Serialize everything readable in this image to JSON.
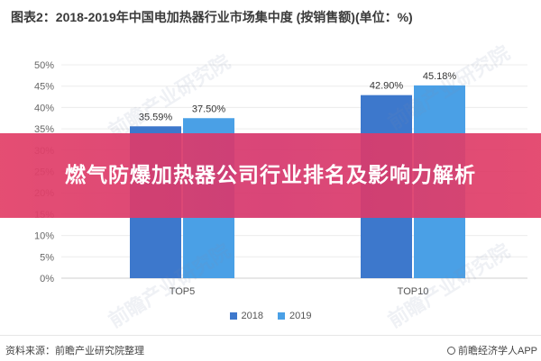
{
  "title": "图表2：2018-2019年中国电加热器行业市场集中度 (按销售额)(单位：%)",
  "banner": "燃气防爆加热器公司行业排名及影响力解析",
  "watermark": "前瞻产业研究院",
  "source": "资料来源：前瞻产业研究院整理",
  "brand": "前瞻经济学人APP",
  "colors": {
    "s2018": "#3d78cc",
    "s2019": "#4aa0e6",
    "banner": "#e04068"
  },
  "chart_data": {
    "type": "bar",
    "categories": [
      "TOP5",
      "TOP10"
    ],
    "series": [
      {
        "name": "2018",
        "values": [
          35.59,
          42.9
        ],
        "labels": [
          "35.59%",
          "42.90%"
        ]
      },
      {
        "name": "2019",
        "values": [
          37.5,
          45.18
        ],
        "labels": [
          "37.50%",
          "45.18%"
        ]
      }
    ],
    "ylim": [
      0,
      50
    ],
    "yticks": [
      0,
      5,
      10,
      15,
      20,
      25,
      30,
      35,
      40,
      45,
      50
    ],
    "ytick_labels": [
      "0%",
      "5%",
      "10%",
      "15%",
      "20%",
      "25%",
      "30%",
      "35%",
      "40%",
      "45%",
      "50%"
    ],
    "grid": true,
    "legend": "bottom"
  }
}
